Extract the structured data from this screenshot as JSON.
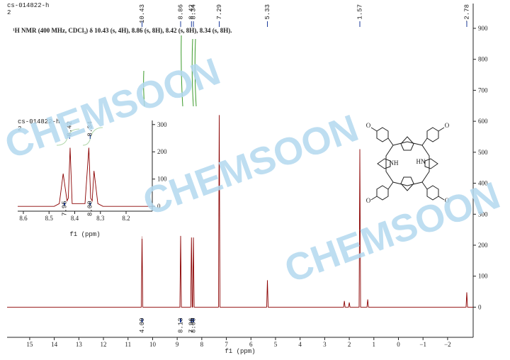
{
  "chart_data": [
    {
      "type": "line",
      "header": [
        "cs-014822-h",
        "2"
      ],
      "annotation": "¹H NMR (400 MHz, CDCl₃) δ 10.43 (s, 4H), 8.86 (s, 8H), 8.42 (s, 8H), 8.34 (s, 8H).",
      "x_label": "f1 (ppm)",
      "color": "#8b0000",
      "x": [
        15.92,
        10.46,
        10.43,
        10.4,
        8.89,
        8.86,
        8.83,
        8.45,
        8.42,
        8.39,
        8.37,
        8.34,
        8.31,
        7.32,
        7.29,
        7.26,
        5.36,
        5.33,
        5.3,
        2.23,
        2.2,
        2.17,
        2.03,
        2.0,
        1.97,
        1.6,
        1.57,
        1.54,
        1.28,
        1.25,
        1.22,
        -2.75,
        -2.78,
        -2.81,
        -3.04
      ],
      "values": [
        0,
        0,
        229,
        0,
        0,
        230,
        0,
        0,
        225,
        0,
        0,
        225,
        0,
        0,
        620,
        0,
        0,
        87,
        0,
        0,
        20,
        0,
        0,
        15,
        0,
        0,
        510,
        0,
        0,
        25,
        0,
        0,
        48,
        0,
        0
      ],
      "peak_labels": [
        10.43,
        8.86,
        8.42,
        8.34,
        7.29,
        5.33,
        1.57,
        -2.78
      ],
      "integrals": {
        "x": [
          10.43,
          8.86,
          8.42,
          8.34
        ],
        "values": [
          4.09,
          8.13,
          7.96,
          {
            "value": 8,
            "label": "8.00"
          }
        ]
      },
      "xlim": [
        15.92,
        -3.04
      ],
      "xticks": [
        15,
        14,
        13,
        12,
        11,
        10,
        9,
        8,
        7,
        6,
        5,
        4,
        3,
        2,
        1,
        0,
        {
          "value": -1,
          "label": "−1"
        },
        {
          "value": -2,
          "label": "−2"
        }
      ],
      "ylim": [
        -15,
        980
      ],
      "yticks": [
        0,
        100,
        200,
        300,
        400,
        500,
        600,
        700,
        800,
        900
      ]
    },
    {
      "type": "line",
      "header": [
        "cs-014822-h",
        "2"
      ],
      "x_label": "f1 (ppm)",
      "color": "#8b0000",
      "x": [
        8.622,
        8.48,
        8.46,
        8.445,
        8.43,
        8.425,
        8.418,
        8.41,
        8.36,
        8.345,
        8.338,
        8.332,
        8.325,
        8.31,
        8.29,
        8.098
      ],
      "values": [
        0,
        0,
        10,
        120,
        20,
        30,
        215,
        10,
        10,
        215,
        30,
        20,
        130,
        10,
        0,
        0
      ],
      "peak_labels": [
        8.42,
        8.34
      ],
      "integrals": {
        "x": [
          8.44,
          8.34
        ],
        "values": [
          7.95,
          {
            "value": 8,
            "label": "8.00"
          }
        ]
      },
      "xlim": [
        8.622,
        8.098
      ],
      "xticks": [
        8.6,
        8.5,
        8.4,
        8.3,
        8.2
      ],
      "ylim": [
        -23,
        315
      ],
      "yticks": [
        0,
        100,
        200,
        300
      ]
    }
  ],
  "watermarks": [
    "CHEMSOON",
    "CHEMSOON",
    "CHEMSOON"
  ],
  "structure": {
    "atoms": [
      "O",
      "O",
      "O",
      "O",
      "NH",
      "HN"
    ]
  }
}
